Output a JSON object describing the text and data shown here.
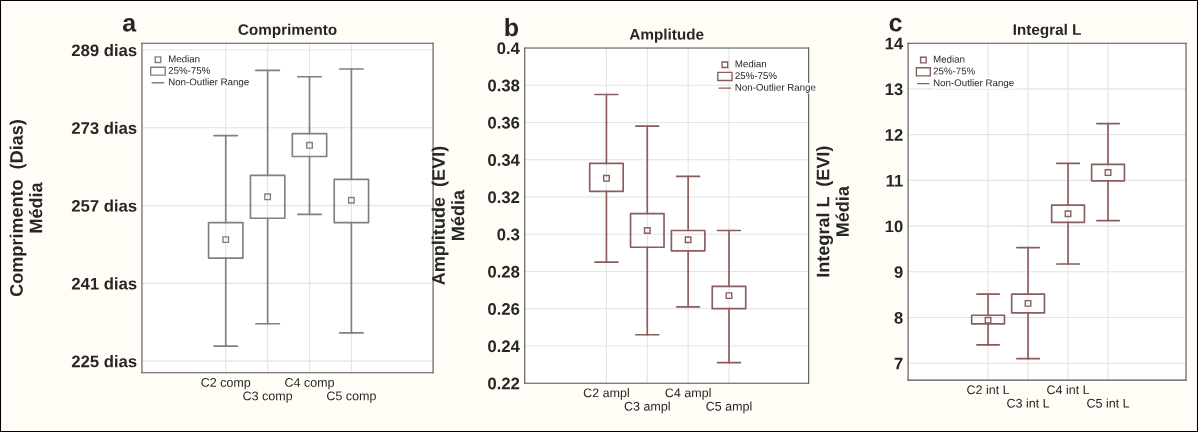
{
  "chart_data": [
    {
      "type": "box",
      "title": "Comprimento",
      "ylabel": "Comprimento  (Dias)\nMédia",
      "categories": [
        "C2 comp",
        "C3 comp",
        "C4 comp",
        "C5 comp"
      ],
      "color": "#808080",
      "boxes": [
        {
          "low": 228.1,
          "q1": 246.2,
          "median": 250.0,
          "q3": 253.5,
          "high": 271.4
        },
        {
          "low": 232.7,
          "q1": 254.4,
          "median": 258.8,
          "q3": 263.2,
          "high": 284.8
        },
        {
          "low": 255.2,
          "q1": 267.1,
          "median": 269.4,
          "q3": 271.8,
          "high": 283.5
        },
        {
          "low": 230.8,
          "q1": 253.5,
          "median": 258.1,
          "q3": 262.4,
          "high": 285.1
        }
      ],
      "ylim": [
        222.6,
        290.4
      ],
      "yticks": [
        {
          "value": 225,
          "label": "225 dias"
        },
        {
          "value": 241,
          "label": "241 dias"
        },
        {
          "value": 257,
          "label": "257 dias"
        },
        {
          "value": 273,
          "label": "273 dias"
        },
        {
          "value": 289,
          "label": "289 dias"
        }
      ],
      "grid": true,
      "annotations": [
        "a",
        "Median",
        "25%-75%",
        "Non-Outlier Range"
      ]
    },
    {
      "type": "box",
      "title": "Amplitude",
      "ylabel": "Amplitude  (EVI)\nMédia",
      "categories": [
        "C2 ampl",
        "C3 ampl",
        "C4 ampl",
        "C5 ampl"
      ],
      "color": "#8a5c5c",
      "boxes": [
        {
          "low": 0.285,
          "q1": 0.323,
          "median": 0.33,
          "q3": 0.338,
          "high": 0.375
        },
        {
          "low": 0.246,
          "q1": 0.293,
          "median": 0.302,
          "q3": 0.311,
          "high": 0.358
        },
        {
          "low": 0.261,
          "q1": 0.291,
          "median": 0.297,
          "q3": 0.302,
          "high": 0.331
        },
        {
          "low": 0.231,
          "q1": 0.26,
          "median": 0.267,
          "q3": 0.272,
          "high": 0.302
        }
      ],
      "ylim": [
        0.22,
        0.4
      ],
      "yticks": [
        0.22,
        0.24,
        0.26,
        0.28,
        {
          "value": 0.3,
          "label": "0.3"
        },
        0.32,
        0.34,
        0.36,
        0.38,
        {
          "value": 0.4,
          "label": "0.4"
        }
      ],
      "grid": true,
      "annotations": [
        "b",
        "Median",
        "25%-75%",
        "Non-Outlier Range"
      ]
    },
    {
      "type": "box",
      "title": "Integral L",
      "ylabel": "Integral L  (EVI)\nMédia",
      "categories": [
        "C2 int L",
        "C3 int L",
        "C4 int L",
        "C5 int L"
      ],
      "color": "#8a5c5c",
      "boxes": [
        {
          "low": 7.4,
          "q1": 7.86,
          "median": 7.94,
          "q3": 8.05,
          "high": 8.51
        },
        {
          "low": 7.1,
          "q1": 8.1,
          "median": 8.31,
          "q3": 8.51,
          "high": 9.53
        },
        {
          "low": 9.17,
          "q1": 10.08,
          "median": 10.27,
          "q3": 10.46,
          "high": 11.37
        },
        {
          "low": 10.12,
          "q1": 10.99,
          "median": 11.17,
          "q3": 11.35,
          "high": 12.24
        }
      ],
      "ylim": [
        6.63,
        14
      ],
      "yticks": [
        7,
        8,
        9,
        10,
        11,
        12,
        13,
        14
      ],
      "grid": true,
      "annotations": [
        "c",
        "Median",
        "25%-75%",
        "Non-Outlier Range"
      ]
    }
  ]
}
